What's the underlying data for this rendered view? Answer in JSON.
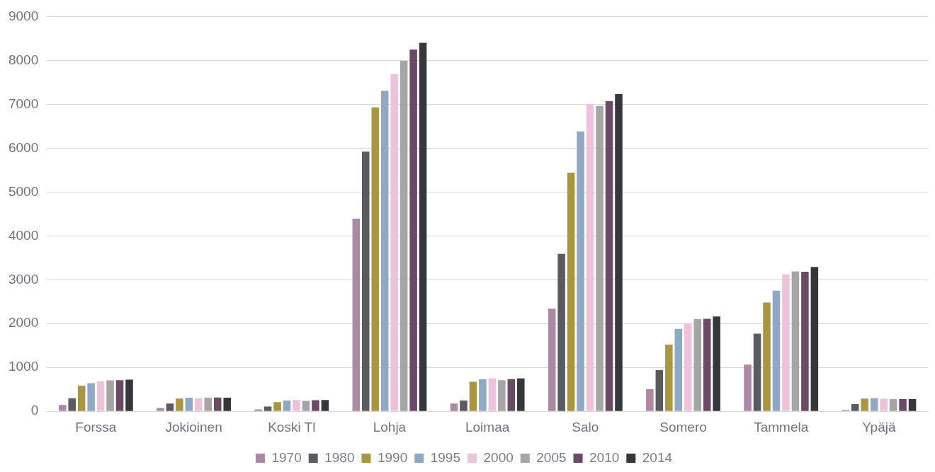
{
  "chart_data": {
    "type": "bar",
    "categories": [
      "Forssa",
      "Jokioinen",
      "Koski Tl",
      "Lohja",
      "Loimaa",
      "Salo",
      "Somero",
      "Tammela",
      "Ypäjä"
    ],
    "series": [
      {
        "name": "1970",
        "color": "#ab88a4",
        "values": [
          145,
          75,
          44,
          4390,
          176,
          2340,
          503,
          1066,
          26
        ]
      },
      {
        "name": "1980",
        "color": "#5a5b61",
        "values": [
          296,
          176,
          107,
          5920,
          245,
          3590,
          940,
          1770,
          166
        ]
      },
      {
        "name": "1990",
        "color": "#ab9640",
        "values": [
          585,
          289,
          208,
          6930,
          673,
          5440,
          1520,
          2480,
          291
        ]
      },
      {
        "name": "1995",
        "color": "#8fa8c6",
        "values": [
          641,
          308,
          245,
          7310,
          728,
          6380,
          1880,
          2750,
          298
        ]
      },
      {
        "name": "2000",
        "color": "#efc2dc",
        "values": [
          686,
          296,
          258,
          7690,
          748,
          6990,
          2010,
          3120,
          285
        ]
      },
      {
        "name": "2005",
        "color": "#a5a5a5",
        "values": [
          704,
          308,
          239,
          7990,
          709,
          6960,
          2100,
          3190,
          278
        ]
      },
      {
        "name": "2010",
        "color": "#6b4a65",
        "values": [
          711,
          314,
          252,
          8250,
          735,
          7070,
          2110,
          3180,
          278
        ]
      },
      {
        "name": "2014",
        "color": "#36373a",
        "values": [
          723,
          308,
          258,
          8400,
          748,
          7230,
          2160,
          3290,
          278
        ]
      }
    ],
    "ylim": [
      0,
      9000
    ],
    "yticks": [
      0,
      1000,
      2000,
      3000,
      4000,
      5000,
      6000,
      7000,
      8000,
      9000
    ],
    "grid": "y",
    "legend": "bottom"
  }
}
